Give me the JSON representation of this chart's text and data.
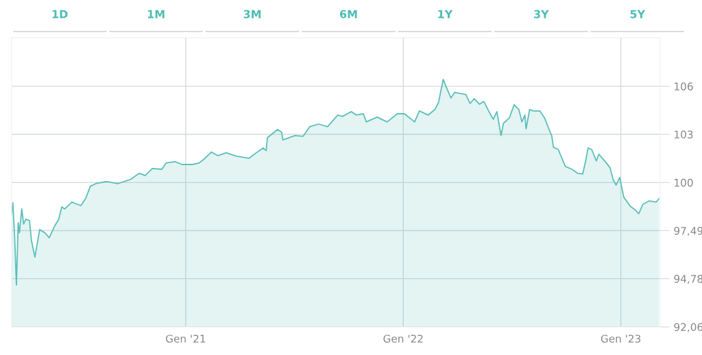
{
  "chart_data": {
    "type": "area",
    "annotations": [
      "1D",
      "1M",
      "3M",
      "6M",
      "1Y",
      "3Y",
      "5Y"
    ],
    "x": [
      "2020-03-15",
      "2020-03-17",
      "2020-03-20",
      "2020-03-23",
      "2020-03-26",
      "2020-03-28",
      "2020-04-01",
      "2020-04-04",
      "2020-04-08",
      "2020-04-14",
      "2020-04-17",
      "2020-04-23",
      "2020-04-28",
      "2020-05-01",
      "2020-05-10",
      "2020-05-17",
      "2020-05-26",
      "2020-06-02",
      "2020-06-07",
      "2020-06-12",
      "2020-06-24",
      "2020-07-09",
      "2020-07-17",
      "2020-07-25",
      "2020-08-03",
      "2020-08-21",
      "2020-09-09",
      "2020-09-30",
      "2020-10-15",
      "2020-10-25",
      "2020-11-06",
      "2020-11-22",
      "2020-11-29",
      "2020-12-14",
      "2020-12-26",
      "2021-01-12",
      "2021-01-23",
      "2021-02-01",
      "2021-02-13",
      "2021-02-24",
      "2021-03-10",
      "2021-03-27",
      "2021-04-17",
      "2021-05-01",
      "2021-05-11",
      "2021-05-16",
      "2021-05-18",
      "2021-06-04",
      "2021-06-11",
      "2021-06-13",
      "2021-07-03",
      "2021-07-17",
      "2021-07-28",
      "2021-08-12",
      "2021-08-27",
      "2021-09-13",
      "2021-09-21",
      "2021-10-06",
      "2021-10-14",
      "2021-10-26",
      "2021-10-31",
      "2021-11-18",
      "2021-12-05",
      "2021-12-22",
      "2022-01-03",
      "2022-01-20",
      "2022-01-28",
      "2022-02-12",
      "2022-02-23",
      "2022-03-01",
      "2022-03-09",
      "2022-03-16",
      "2022-03-22",
      "2022-03-28",
      "2022-04-16",
      "2022-04-23",
      "2022-04-30",
      "2022-05-09",
      "2022-05-16",
      "2022-05-26",
      "2022-06-01",
      "2022-06-07",
      "2022-06-14",
      "2022-06-18",
      "2022-06-28",
      "2022-07-06",
      "2022-07-14",
      "2022-07-19",
      "2022-07-24",
      "2022-07-26",
      "2022-08-01",
      "2022-08-07",
      "2022-08-18",
      "2022-08-26",
      "2022-09-03",
      "2022-09-07",
      "2022-09-10",
      "2022-09-18",
      "2022-09-26",
      "2022-09-30",
      "2022-10-11",
      "2022-10-21",
      "2022-10-29",
      "2022-11-03",
      "2022-11-07",
      "2022-11-13",
      "2022-11-21",
      "2022-11-25",
      "2022-12-06",
      "2022-12-14",
      "2022-12-19",
      "2022-12-24",
      "2022-12-30",
      "2023-01-06",
      "2023-01-17",
      "2023-01-26",
      "2023-01-31",
      "2023-02-07",
      "2023-02-18",
      "2023-03-01",
      "2023-03-06"
    ],
    "series": [
      {
        "color": "#5bbfba",
        "values": [
          98.44,
          99.06,
          97.16,
          94.42,
          97.94,
          97.36,
          98.71,
          97.86,
          98.13,
          98.05,
          96.97,
          96.0,
          96.97,
          97.55,
          97.36,
          97.09,
          97.74,
          98.13,
          98.83,
          98.71,
          99.1,
          98.9,
          99.29,
          99.99,
          100.14,
          100.26,
          100.14,
          100.37,
          100.72,
          100.6,
          100.99,
          100.95,
          101.3,
          101.38,
          101.22,
          101.22,
          101.3,
          101.53,
          101.92,
          101.72,
          101.88,
          101.69,
          101.57,
          101.92,
          102.15,
          102.0,
          102.73,
          103.19,
          103.04,
          102.61,
          102.85,
          102.81,
          103.35,
          103.5,
          103.35,
          104.01,
          103.93,
          104.2,
          104.01,
          104.08,
          103.62,
          103.89,
          103.62,
          104.08,
          104.08,
          103.62,
          104.24,
          104.01,
          104.32,
          104.7,
          106.02,
          105.44,
          104.97,
          105.28,
          105.17,
          104.66,
          104.93,
          104.62,
          104.78,
          104.12,
          103.77,
          104.2,
          102.85,
          103.54,
          103.85,
          104.59,
          104.32,
          103.62,
          104.01,
          103.23,
          104.32,
          104.24,
          104.24,
          103.85,
          103.16,
          102.85,
          102.19,
          102.07,
          101.42,
          101.11,
          100.95,
          100.72,
          100.68,
          101.42,
          102.15,
          102.07,
          101.42,
          101.8,
          101.38,
          101.03,
          100.37,
          100.06,
          100.49,
          99.37,
          98.86,
          98.63,
          98.44,
          98.98,
          99.17,
          99.1,
          99.29
        ]
      }
    ],
    "xlim": [
      "2020-03-15",
      "2023-03-08"
    ],
    "xticks": [
      {
        "value": "2021-01-01",
        "label": "Gen '21"
      },
      {
        "value": "2022-01-01",
        "label": "Gen '22"
      },
      {
        "value": "2023-01-01",
        "label": "Gen '23"
      }
    ],
    "ylim": [
      92.06,
      108.37
    ],
    "yticks": [
      {
        "value": 92.06,
        "label": "92,06"
      },
      {
        "value": 94.78,
        "label": "94,78"
      },
      {
        "value": 97.49,
        "label": "97,49"
      },
      {
        "value": 100.2,
        "label": "100"
      },
      {
        "value": 102.92,
        "label": "103"
      },
      {
        "value": 105.63,
        "label": "106"
      }
    ],
    "grid": true,
    "legend": false
  }
}
